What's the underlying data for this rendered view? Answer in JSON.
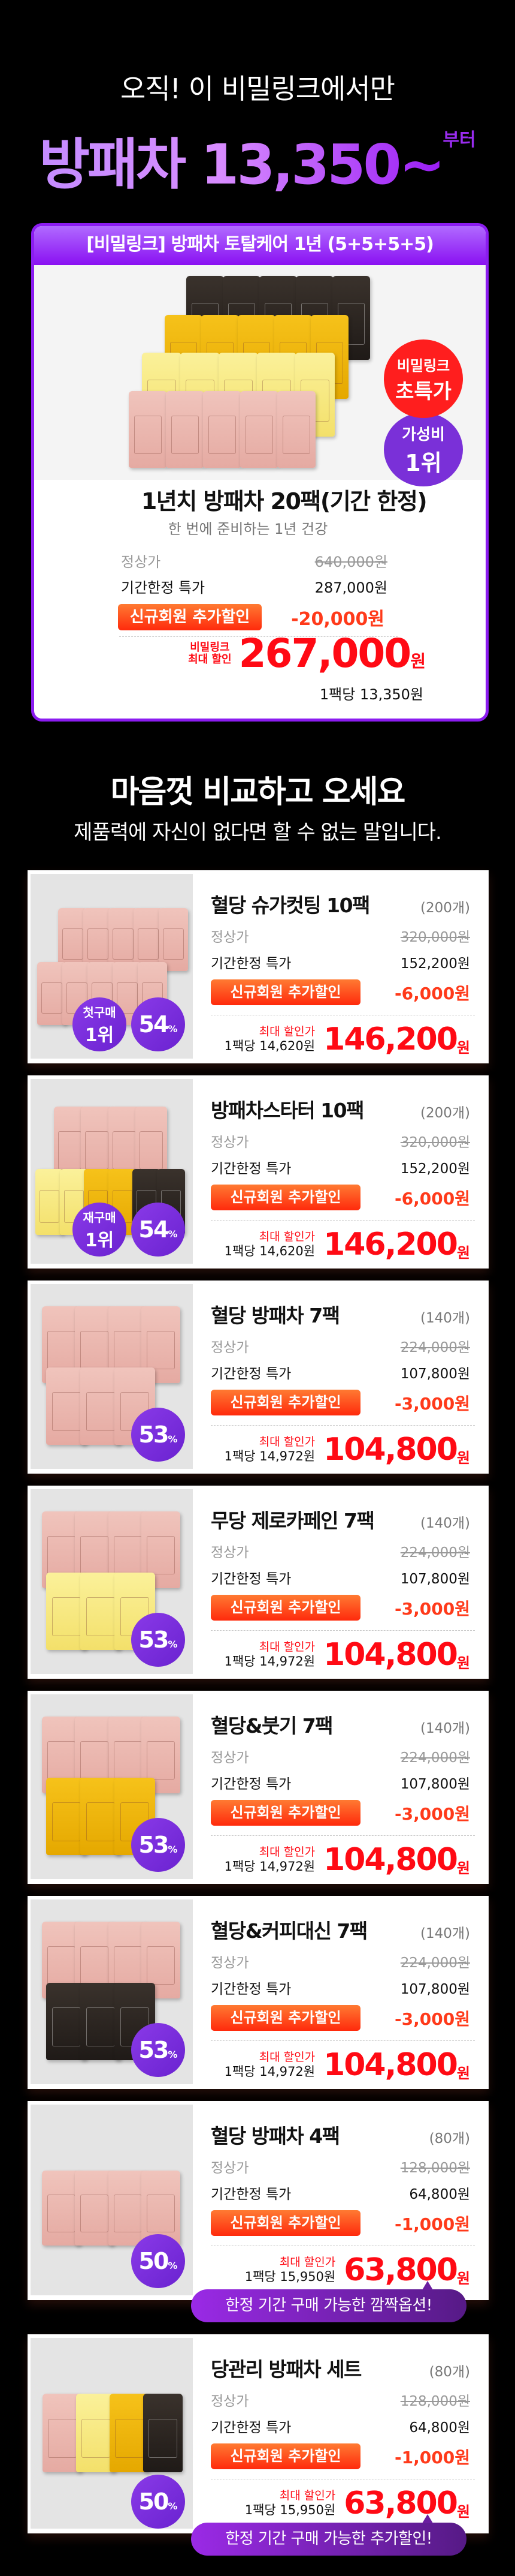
{
  "hero": {
    "line1": "오직! 이 비밀링크에서만",
    "line2": "방패차 13,350~",
    "sup": "부터"
  },
  "deal": {
    "header": "[비밀링크] 방패차 토탈케어 1년 (5+5+5+5)",
    "badge_red": [
      "비밀링크",
      "초특가"
    ],
    "badge_purple": [
      "가성비",
      "1위"
    ],
    "pack_rows": [
      [
        "black",
        "black",
        "black",
        "black",
        "black"
      ],
      [
        "gold",
        "gold",
        "gold",
        "gold",
        "gold"
      ],
      [
        "lemon",
        "lemon",
        "lemon",
        "lemon",
        "lemon"
      ],
      [
        "pink",
        "pink",
        "pink",
        "pink",
        "pink"
      ]
    ],
    "title": "1년치 방패차 20팩(기간 한정)",
    "subtitle": "한 번에 준비하는 1년 건강",
    "regular_label": "정상가",
    "regular_price": "640,000원",
    "special_label": "기간한정 특가",
    "special_price": "287,000원",
    "new_member_button": "신규회원 추가할인",
    "new_member_discount": "-20,000원",
    "final_label": [
      "비밀링크",
      "최대 할인"
    ],
    "final_price": "267,000",
    "won": "원",
    "per_pack": "1팩당 13,350원"
  },
  "section": {
    "title": "마음껏 비교하고 오세요",
    "subtitle": "제품력에 자신이 없다면 할 수 없는 말입니다."
  },
  "labels": {
    "regular": "정상가",
    "special": "기간한정 특가",
    "new_member": "신규회원 추가할인",
    "max_discount": "최대 할인가",
    "won": "원",
    "percent": "%"
  },
  "colors": {
    "accent_purple": "#8b1cf0",
    "price_red": "#ff0a14",
    "discount_orange": "#ff3a1a",
    "pink": "#e9b3ab",
    "lemon": "#f6ea80",
    "gold": "#f0b800",
    "black": "#2a2420"
  },
  "products": [
    {
      "title": "혈당 슈가컷팅 10팩",
      "count": "(200개)",
      "regular": "320,000원",
      "special": "152,200원",
      "discount": "-6,000원",
      "final": "146,200",
      "per_pack": "1팩당 14,620원",
      "percent": "54",
      "rank": [
        "첫구매",
        "1위"
      ],
      "packs": [
        [
          "pink",
          "pink",
          "pink",
          "pink",
          "pink"
        ],
        [
          "pink",
          "pink",
          "pink",
          "pink",
          "pink"
        ]
      ]
    },
    {
      "title": "방패차스타터 10팩",
      "count": "(200개)",
      "regular": "320,000원",
      "special": "152,200원",
      "discount": "-6,000원",
      "final": "146,200",
      "per_pack": "1팩당 14,620원",
      "percent": "54",
      "rank": [
        "재구매",
        "1위"
      ],
      "packs": [
        [
          "pink",
          "pink",
          "pink",
          "pink"
        ],
        [
          "lemon",
          "lemon",
          "gold",
          "gold",
          "black",
          "black"
        ]
      ]
    },
    {
      "title": "혈당 방패차 7팩",
      "count": "(140개)",
      "regular": "224,000원",
      "special": "107,800원",
      "discount": "-3,000원",
      "final": "104,800",
      "per_pack": "1팩당 14,972원",
      "percent": "53",
      "packs": [
        [
          "pink",
          "pink",
          "pink",
          "pink"
        ],
        [
          "pink",
          "pink",
          "pink"
        ]
      ]
    },
    {
      "title": "무당 제로카페인 7팩",
      "count": "(140개)",
      "regular": "224,000원",
      "special": "107,800원",
      "discount": "-3,000원",
      "final": "104,800",
      "per_pack": "1팩당 14,972원",
      "percent": "53",
      "packs": [
        [
          "pink",
          "pink",
          "pink",
          "pink"
        ],
        [
          "lemon",
          "lemon",
          "lemon"
        ]
      ]
    },
    {
      "title": "혈당&붓기 7팩",
      "count": "(140개)",
      "regular": "224,000원",
      "special": "107,800원",
      "discount": "-3,000원",
      "final": "104,800",
      "per_pack": "1팩당 14,972원",
      "percent": "53",
      "packs": [
        [
          "pink",
          "pink",
          "pink",
          "pink"
        ],
        [
          "gold",
          "gold",
          "gold"
        ]
      ]
    },
    {
      "title": "혈당&커피대신 7팩",
      "count": "(140개)",
      "regular": "224,000원",
      "special": "107,800원",
      "discount": "-3,000원",
      "final": "104,800",
      "per_pack": "1팩당 14,972원",
      "percent": "53",
      "packs": [
        [
          "pink",
          "pink",
          "pink",
          "pink"
        ],
        [
          "black",
          "black",
          "black"
        ]
      ]
    },
    {
      "title": "혈당 방패차 4팩",
      "count": "(80개)",
      "regular": "128,000원",
      "special": "64,800원",
      "discount": "-1,000원",
      "final": "63,800",
      "per_pack": "1팩당 15,950원",
      "percent": "50",
      "banner": "한정 기간 구매 가능한 깜짝옵션!",
      "packs": [
        [
          "pink",
          "pink",
          "pink",
          "pink"
        ]
      ]
    },
    {
      "title": "당관리 방패차 세트",
      "count": "(80개)",
      "regular": "128,000원",
      "special": "64,800원",
      "discount": "-1,000원",
      "final": "63,800",
      "per_pack": "1팩당 15,950원",
      "percent": "50",
      "banner": "한정 기간 구매 가능한 추가할인!",
      "packs": [
        [
          "pink",
          "lemon",
          "gold",
          "black"
        ]
      ]
    }
  ]
}
